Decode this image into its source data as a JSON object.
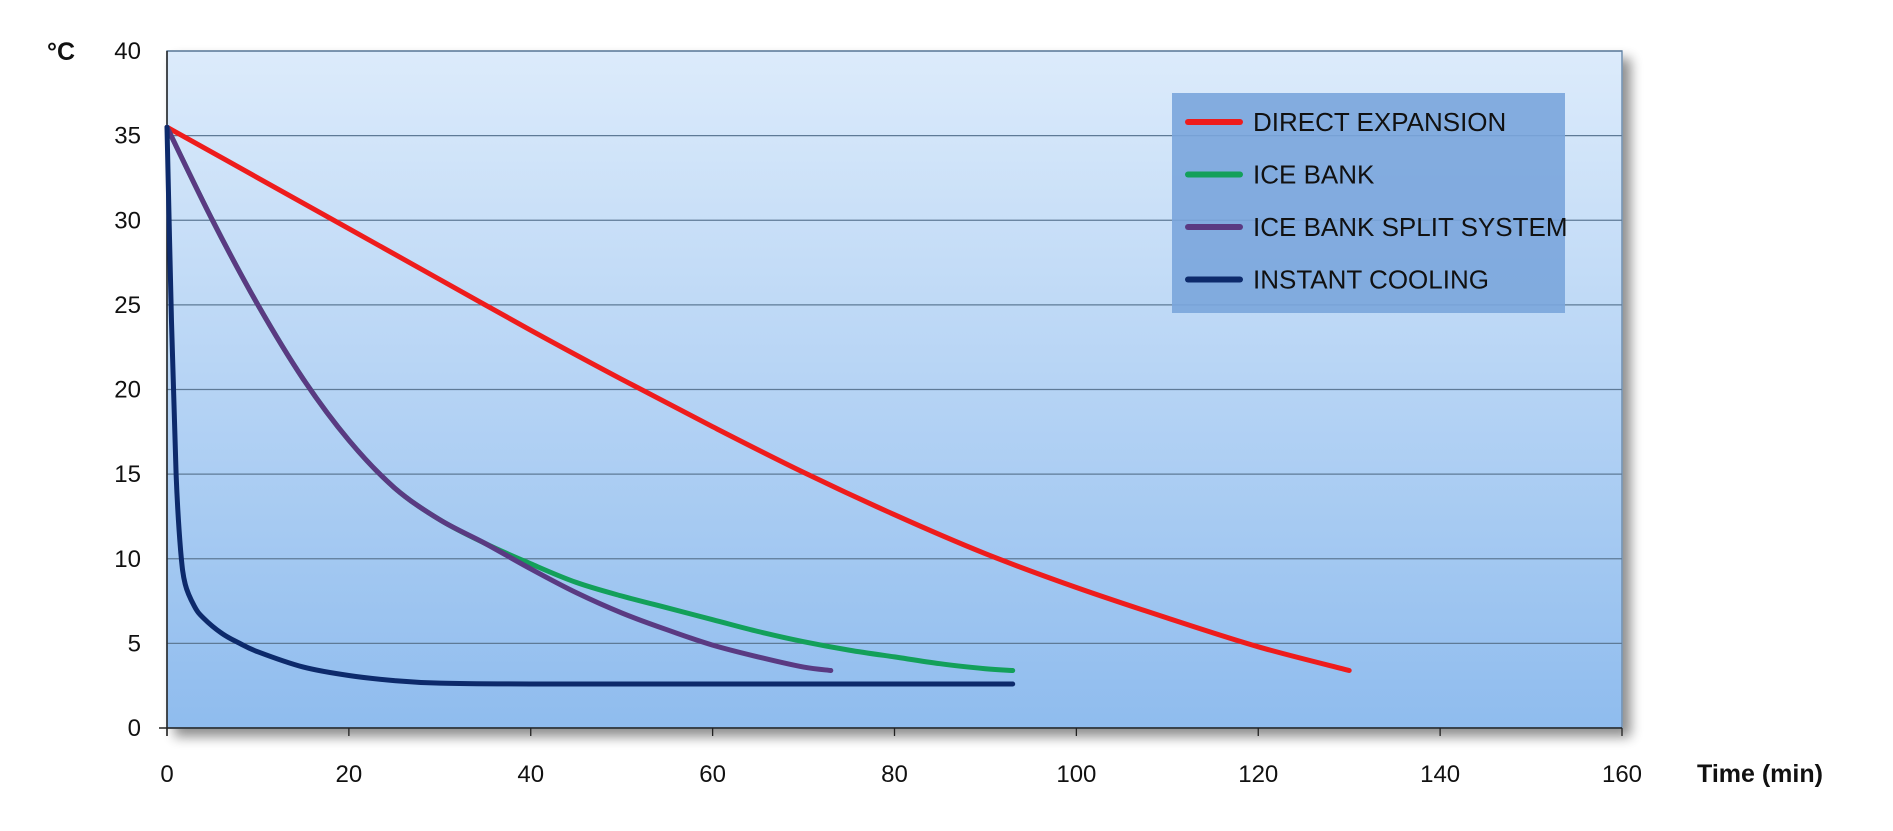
{
  "chart_data": {
    "type": "line",
    "title": "",
    "xlabel": "Time (min)",
    "ylabel": "°C",
    "xlim": [
      0,
      160
    ],
    "ylim": [
      0,
      40
    ],
    "x_ticks": [
      0,
      20,
      40,
      60,
      80,
      100,
      120,
      140,
      160
    ],
    "y_ticks": [
      0,
      5,
      10,
      15,
      20,
      25,
      30,
      35,
      40
    ],
    "grid": "horizontal",
    "legend_position": "top-right",
    "background": {
      "top": "#dcebfb",
      "bottom": "#8fbcee",
      "frame": "#6f8fb0"
    },
    "legend_style": {
      "fill": "#7aa5dc"
    },
    "series": [
      {
        "name": "DIRECT EXPANSION",
        "color": "#ee1c1c",
        "x": [
          0,
          10,
          20,
          30,
          40,
          50,
          60,
          70,
          80,
          90,
          100,
          110,
          120,
          130
        ],
        "y": [
          35.5,
          32.5,
          29.5,
          26.5,
          23.5,
          20.6,
          17.8,
          15.1,
          12.6,
          10.3,
          8.3,
          6.5,
          4.8,
          3.4
        ]
      },
      {
        "name": "ICE BANK",
        "color": "#13a05a",
        "x": [
          0,
          5,
          10,
          15,
          20,
          25,
          30,
          35,
          40,
          45,
          50,
          55,
          60,
          65,
          70,
          75,
          80,
          85,
          90,
          93
        ],
        "y": [
          35.5,
          30.0,
          25.0,
          20.6,
          17.0,
          14.2,
          12.3,
          10.9,
          9.7,
          8.6,
          7.8,
          7.1,
          6.4,
          5.7,
          5.1,
          4.6,
          4.2,
          3.8,
          3.5,
          3.4
        ]
      },
      {
        "name": "ICE BANK SPLIT SYSTEM",
        "color": "#5a3a82",
        "x": [
          0,
          5,
          10,
          15,
          20,
          25,
          30,
          35,
          40,
          45,
          50,
          55,
          60,
          65,
          70,
          73
        ],
        "y": [
          35.5,
          30.0,
          25.0,
          20.6,
          17.0,
          14.2,
          12.3,
          10.9,
          9.4,
          8.0,
          6.8,
          5.8,
          4.9,
          4.2,
          3.6,
          3.4
        ]
      },
      {
        "name": "INSTANT COOLING",
        "color": "#0d2a6b",
        "x": [
          0,
          0.5,
          1,
          1.5,
          2,
          3,
          4,
          6,
          8,
          10,
          15,
          20,
          25,
          30,
          40,
          50,
          60,
          70,
          80,
          93
        ],
        "y": [
          35.5,
          24.0,
          15.0,
          10.5,
          8.5,
          7.2,
          6.5,
          5.6,
          5.0,
          4.5,
          3.6,
          3.1,
          2.8,
          2.65,
          2.6,
          2.6,
          2.6,
          2.6,
          2.6,
          2.6
        ]
      }
    ]
  }
}
